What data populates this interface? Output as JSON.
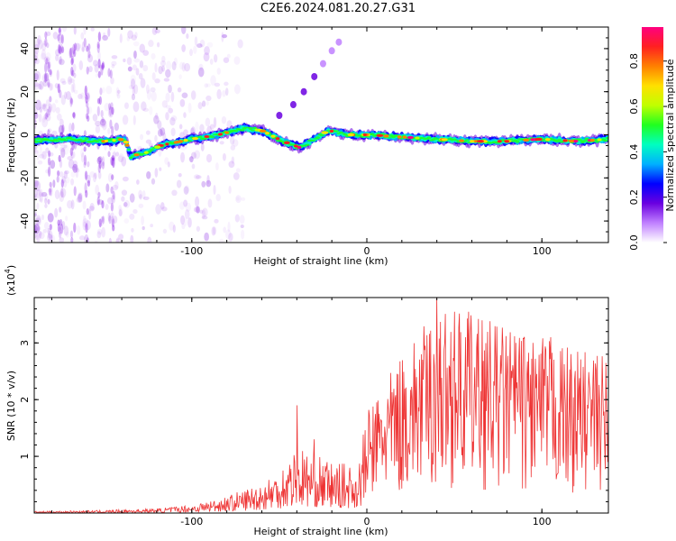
{
  "title": "C2E6.2024.081.20.27.G31",
  "chart_data": [
    {
      "type": "heatmap",
      "xlabel": "Height of straight line (km)",
      "ylabel": "Frequency (Hz)",
      "xlim": [
        -190,
        138
      ],
      "ylim": [
        -50,
        50
      ],
      "xticks": [
        -100,
        0,
        100
      ],
      "yticks": [
        -40,
        -20,
        0,
        20,
        40
      ],
      "colorbar": {
        "label": "Normalized spectral amplitude",
        "range": [
          0,
          0.95
        ],
        "ticks": [
          0.0,
          0.2,
          0.4,
          0.6,
          0.8
        ],
        "colors": [
          "#ffffff",
          "#c080ff",
          "#6a00e0",
          "#0000ff",
          "#00b0ff",
          "#00ffc0",
          "#20ff20",
          "#c0ff00",
          "#ffe000",
          "#ff8000",
          "#ff2020",
          "#ff0080"
        ]
      },
      "ridge": [
        {
          "x": -190,
          "y": -2.5
        },
        {
          "x": -170,
          "y": -2
        },
        {
          "x": -150,
          "y": -3
        },
        {
          "x": -138,
          "y": -2
        },
        {
          "x": -135,
          "y": -10
        },
        {
          "x": -125,
          "y": -8
        },
        {
          "x": -118,
          "y": -5
        },
        {
          "x": -100,
          "y": -2
        },
        {
          "x": -85,
          "y": 0
        },
        {
          "x": -70,
          "y": 3
        },
        {
          "x": -60,
          "y": 2
        },
        {
          "x": -48,
          "y": -3
        },
        {
          "x": -38,
          "y": -6
        },
        {
          "x": -30,
          "y": -2
        },
        {
          "x": -22,
          "y": 2
        },
        {
          "x": -10,
          "y": 0
        },
        {
          "x": 0,
          "y": 0
        },
        {
          "x": 20,
          "y": -1
        },
        {
          "x": 40,
          "y": -2
        },
        {
          "x": 60,
          "y": -3
        },
        {
          "x": 80,
          "y": -3
        },
        {
          "x": 100,
          "y": -2
        },
        {
          "x": 120,
          "y": -3
        },
        {
          "x": 138,
          "y": -2
        }
      ],
      "branch": [
        {
          "x": -50,
          "y": 9
        },
        {
          "x": -42,
          "y": 14
        },
        {
          "x": -36,
          "y": 20
        },
        {
          "x": -30,
          "y": 27
        },
        {
          "x": -25,
          "y": 33
        },
        {
          "x": -20,
          "y": 39
        },
        {
          "x": -16,
          "y": 43
        }
      ]
    },
    {
      "type": "line",
      "xlabel": "Height of straight line (km)",
      "ylabel": "SNR (10 * v/v)",
      "y_multiplier": "(x10",
      "y_multiplier_exp": "4",
      "y_multiplier_close": ")",
      "xlim": [
        -190,
        138
      ],
      "ylim": [
        0,
        3.8
      ],
      "xticks": [
        -100,
        0,
        100
      ],
      "yticks": [
        1,
        2,
        3
      ],
      "color": "#ee3333",
      "envelope": [
        {
          "x": -190,
          "y": 0.03
        },
        {
          "x": -150,
          "y": 0.05
        },
        {
          "x": -120,
          "y": 0.08
        },
        {
          "x": -100,
          "y": 0.15
        },
        {
          "x": -80,
          "y": 0.3
        },
        {
          "x": -60,
          "y": 0.55
        },
        {
          "x": -50,
          "y": 0.8
        },
        {
          "x": -40,
          "y": 1.2
        },
        {
          "x": -30,
          "y": 1.05
        },
        {
          "x": -20,
          "y": 0.9
        },
        {
          "x": -5,
          "y": 0.85
        },
        {
          "x": 0,
          "y": 1.8
        },
        {
          "x": 10,
          "y": 2.3
        },
        {
          "x": 20,
          "y": 2.8
        },
        {
          "x": 30,
          "y": 3.2
        },
        {
          "x": 40,
          "y": 3.6
        },
        {
          "x": 60,
          "y": 3.5
        },
        {
          "x": 80,
          "y": 3.3
        },
        {
          "x": 100,
          "y": 3.1
        },
        {
          "x": 120,
          "y": 2.9
        },
        {
          "x": 138,
          "y": 2.8
        }
      ],
      "peaks": [
        {
          "x": -40,
          "y": 1.9
        },
        {
          "x": -30,
          "y": 1.3
        },
        {
          "x": 40,
          "y": 3.8
        },
        {
          "x": 50,
          "y": 3.55
        },
        {
          "x": 58,
          "y": 3.55
        },
        {
          "x": 66,
          "y": 3.4
        },
        {
          "x": 85,
          "y": 3.0
        },
        {
          "x": 95,
          "y": 3.0
        },
        {
          "x": 105,
          "y": 3.1
        }
      ]
    }
  ]
}
